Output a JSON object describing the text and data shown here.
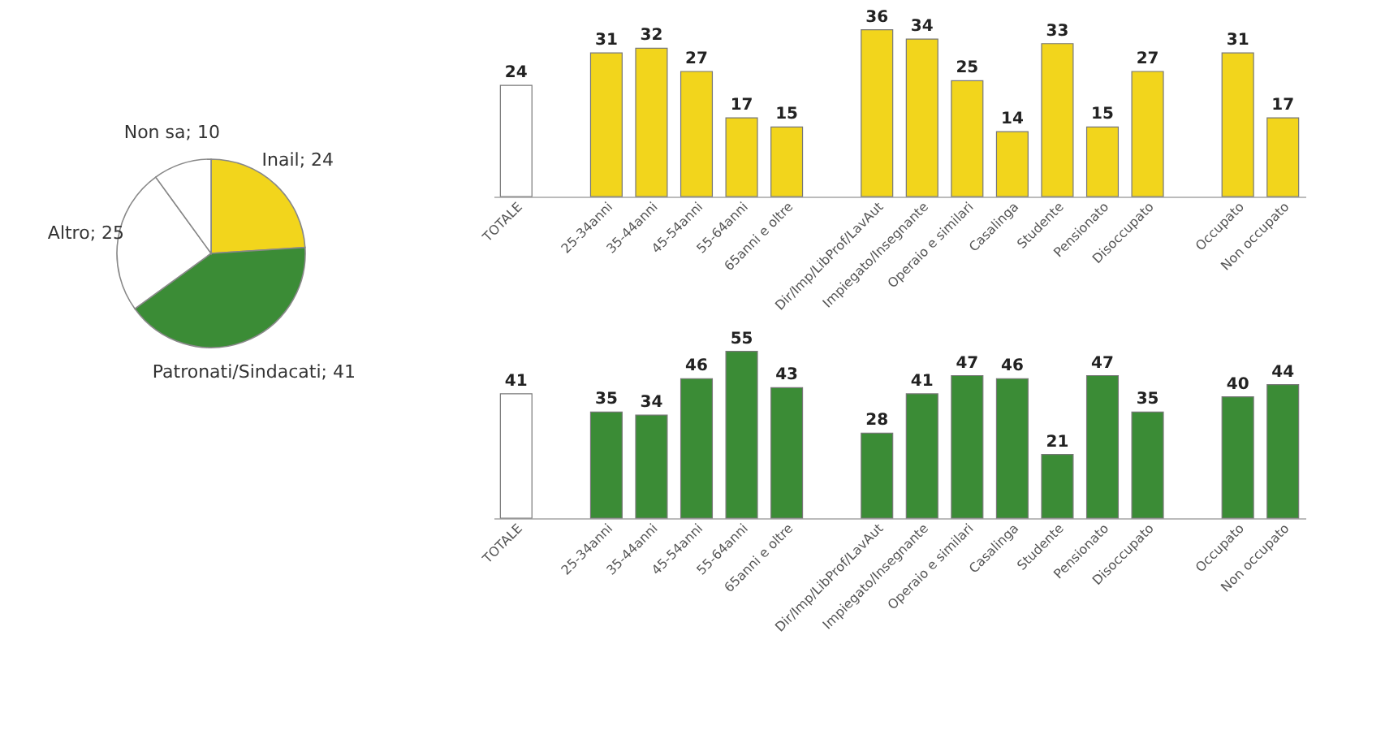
{
  "chart_data": [
    {
      "type": "pie",
      "categories": [
        "Inail; 24",
        "Patronati/Sindacati; 41",
        "Altro; 25",
        "Non sa; 10"
      ],
      "values": [
        24,
        41,
        25,
        10
      ],
      "colors": [
        "#f2d51c",
        "#3b8c36",
        "#ffffff",
        "#ffffff"
      ]
    },
    {
      "type": "bar",
      "categories": [
        "TOTALE",
        null,
        "25-34anni",
        "35-44anni",
        "45-54anni",
        "55-64anni",
        "65anni e oltre",
        null,
        "Dir/Imp/LibProf/LavAut",
        "Impiegato/Insegnante",
        "Operaio e similari",
        "Casalinga",
        "Studente",
        "Pensionato",
        "Disoccupato",
        null,
        "Occupato",
        "Non occupato"
      ],
      "values": [
        24,
        null,
        31,
        32,
        27,
        17,
        15,
        null,
        36,
        34,
        25,
        14,
        33,
        15,
        27,
        null,
        31,
        17
      ],
      "colors": [
        "#ffffff",
        null,
        "#f2d51c",
        "#f2d51c",
        "#f2d51c",
        "#f2d51c",
        "#f2d51c",
        null,
        "#f2d51c",
        "#f2d51c",
        "#f2d51c",
        "#f2d51c",
        "#f2d51c",
        "#f2d51c",
        "#f2d51c",
        null,
        "#f2d51c",
        "#f2d51c"
      ],
      "data_labels": true
    },
    {
      "type": "bar",
      "categories": [
        "TOTALE",
        null,
        "25-34anni",
        "35-44anni",
        "45-54anni",
        "55-64anni",
        "65anni e oltre",
        null,
        "Dir/Imp/LibProf/LavAut",
        "Impiegato/Insegnante",
        "Operaio e similari",
        "Casalinga",
        "Studente",
        "Pensionato",
        "Disoccupato",
        null,
        "Occupato",
        "Non occupato"
      ],
      "values": [
        41,
        null,
        35,
        34,
        46,
        55,
        43,
        null,
        28,
        41,
        47,
        46,
        21,
        47,
        35,
        null,
        40,
        44
      ],
      "colors": [
        "#ffffff",
        null,
        "#3b8c36",
        "#3b8c36",
        "#3b8c36",
        "#3b8c36",
        "#3b8c36",
        null,
        "#3b8c36",
        "#3b8c36",
        "#3b8c36",
        "#3b8c36",
        "#3b8c36",
        "#3b8c36",
        "#3b8c36",
        null,
        "#3b8c36",
        "#3b8c36"
      ],
      "data_labels": true
    }
  ]
}
